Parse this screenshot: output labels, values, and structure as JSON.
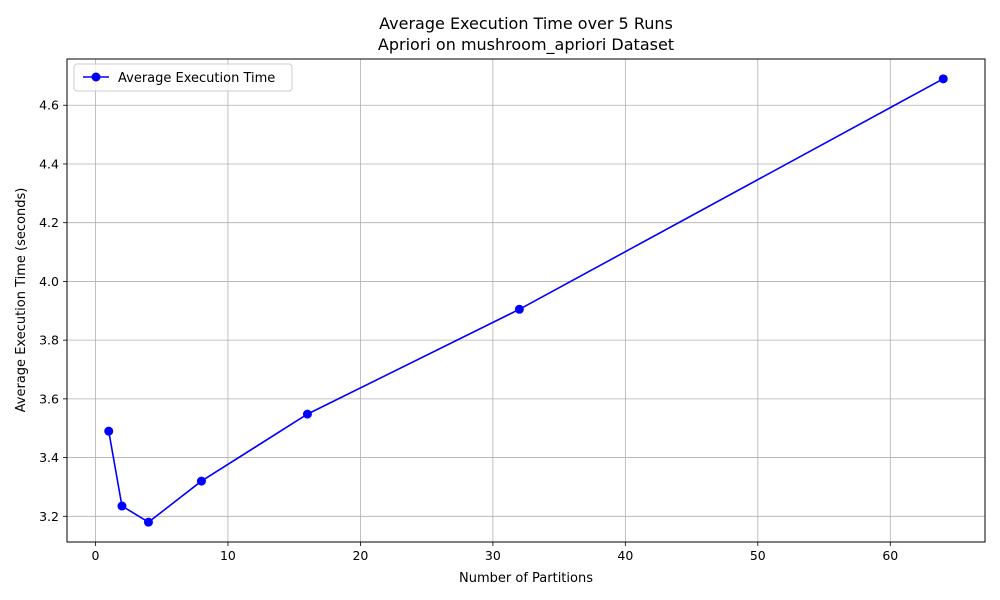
{
  "chart_data": {
    "type": "line",
    "title": "Average Execution Time over 5 Runs",
    "subtitle": "Apriori on mushroom_apriori Dataset",
    "xlabel": "Number of Partitions",
    "ylabel": "Average Execution Time (seconds)",
    "xlim": [
      -2.15,
      67.15
    ],
    "ylim": [
      3.1125,
      4.7575
    ],
    "xticks": [
      0,
      10,
      20,
      30,
      40,
      50,
      60
    ],
    "xtick_labels": [
      "0",
      "10",
      "20",
      "30",
      "40",
      "50",
      "60"
    ],
    "yticks": [
      3.2,
      3.4,
      3.6,
      3.8,
      4.0,
      4.2,
      4.4,
      4.6
    ],
    "ytick_labels": [
      "3.2",
      "3.4",
      "3.6",
      "3.8",
      "4.0",
      "4.2",
      "4.4",
      "4.6"
    ],
    "grid": true,
    "legend_position": "top-left",
    "series": [
      {
        "name": "Average Execution Time",
        "color": "#0000ff",
        "marker": "circle",
        "x": [
          1,
          2,
          4,
          8,
          16,
          32,
          64
        ],
        "y": [
          3.49,
          3.235,
          3.18,
          3.32,
          3.548,
          3.905,
          4.69
        ]
      }
    ]
  }
}
